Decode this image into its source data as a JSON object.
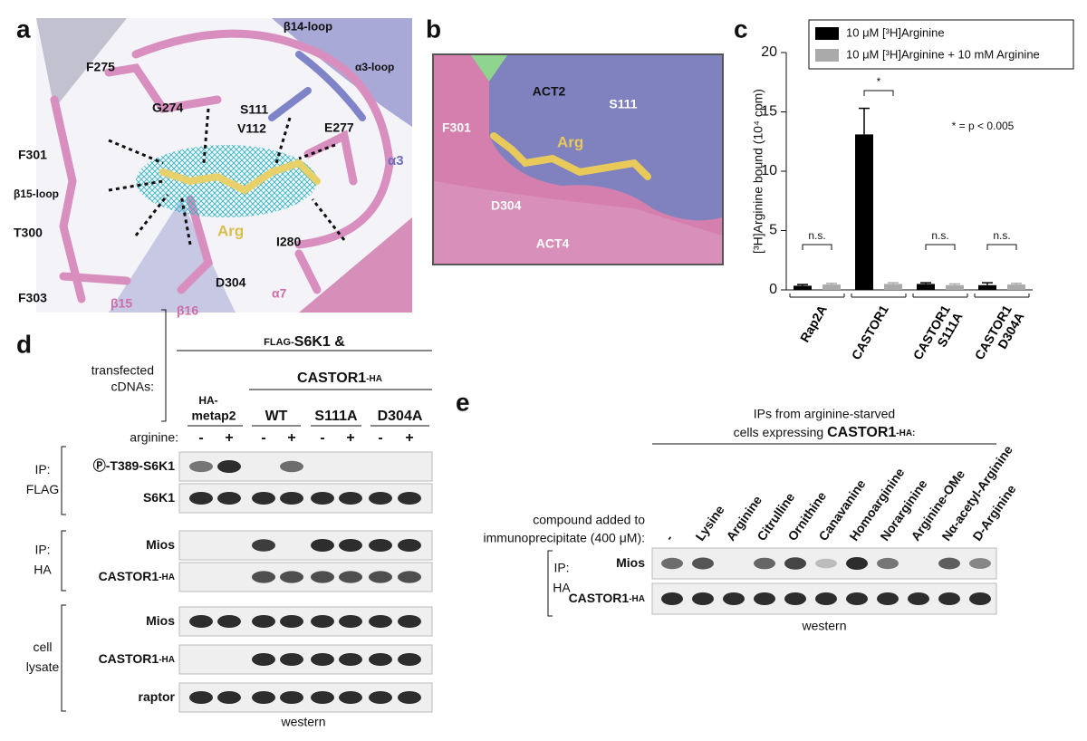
{
  "panel_a": {
    "letter": "a",
    "labels": [
      "β14-loop",
      "F275",
      "α3-loop",
      "S111",
      "G274",
      "V112",
      "E277",
      "α3",
      "F301",
      "β15-loop",
      "Arg",
      "T300",
      "I280",
      "D304",
      "F303",
      "β15",
      "β16",
      "α7"
    ]
  },
  "panel_b": {
    "letter": "b",
    "labels": [
      "ACT2",
      "S111",
      "F301",
      "Arg",
      "D304",
      "ACT4"
    ]
  },
  "chart_data": {
    "type": "bar",
    "panel": "c",
    "ylabel": "[³H]Arginine bound (10⁴ cpm)",
    "categories": [
      "Rap2A",
      "CASTOR1",
      "CASTOR1 S111A",
      "CASTOR1 D304A"
    ],
    "series": [
      {
        "name": "10 μM [³H]Arginine",
        "color": "#000000",
        "values": [
          0.35,
          13.1,
          0.5,
          0.4
        ],
        "errors": [
          0.1,
          2.2,
          0.1,
          0.2
        ]
      },
      {
        "name": "10 μM [³H]Arginine + 10 mM Arginine",
        "color": "#aaaaaa",
        "values": [
          0.45,
          0.5,
          0.4,
          0.45
        ],
        "errors": [
          0.1,
          0.1,
          0.1,
          0.1
        ]
      }
    ],
    "ylim": [
      0,
      20
    ],
    "yticks": [
      0,
      5,
      10,
      15,
      20
    ],
    "annotations": [
      "n.s.",
      "*",
      "n.s.",
      "n.s."
    ],
    "note": "* = p < 0.005"
  },
  "panel_d": {
    "letter": "d",
    "construct_tag": "FLAG-",
    "construct_name": "S6K1 &",
    "transfected_label": [
      "transfected",
      "cDNAs:"
    ],
    "group_name": "CASTOR1",
    "group_tag": "-HA",
    "control": [
      "HA-",
      "metap2"
    ],
    "mutants": [
      "WT",
      "S111A",
      "D304A"
    ],
    "arginine_label": "arginine:",
    "signs": [
      "-",
      "+",
      "-",
      "+",
      "-",
      "+",
      "-",
      "+"
    ],
    "rows": [
      {
        "label": "Ⓟ-T389-S6K1"
      },
      {
        "label": "S6K1"
      },
      {
        "label": "Mios"
      },
      {
        "label": "CASTOR1",
        "tag": "-HA"
      },
      {
        "label": "Mios"
      },
      {
        "label": "CASTOR1",
        "tag": "-HA"
      },
      {
        "label": "raptor"
      }
    ],
    "blocks": [
      [
        "IP:",
        "FLAG"
      ],
      [
        "IP:",
        "HA"
      ],
      [
        "cell",
        "lysate"
      ]
    ],
    "footer": "western"
  },
  "panel_e": {
    "letter": "e",
    "header": [
      "IPs from arginine-starved",
      "cells expressing "
    ],
    "header_bold": "CASTOR1",
    "header_tag": "-HA:",
    "compound_label": [
      "compound added to",
      "immunoprecipitate (400 μM):"
    ],
    "compounds": [
      "-",
      "Lysine",
      "Arginine",
      "Citrulline",
      "Ornithine",
      "Canavanine",
      "Homoarginine",
      "Norarginine",
      "Arginine-OMe",
      "Nα-acetyl-Arginine",
      "D-Arginine"
    ],
    "block": [
      "IP:",
      "HA"
    ],
    "rows": [
      {
        "label": "Mios"
      },
      {
        "label": "CASTOR1",
        "tag": "-HA"
      }
    ],
    "footer": "western"
  }
}
